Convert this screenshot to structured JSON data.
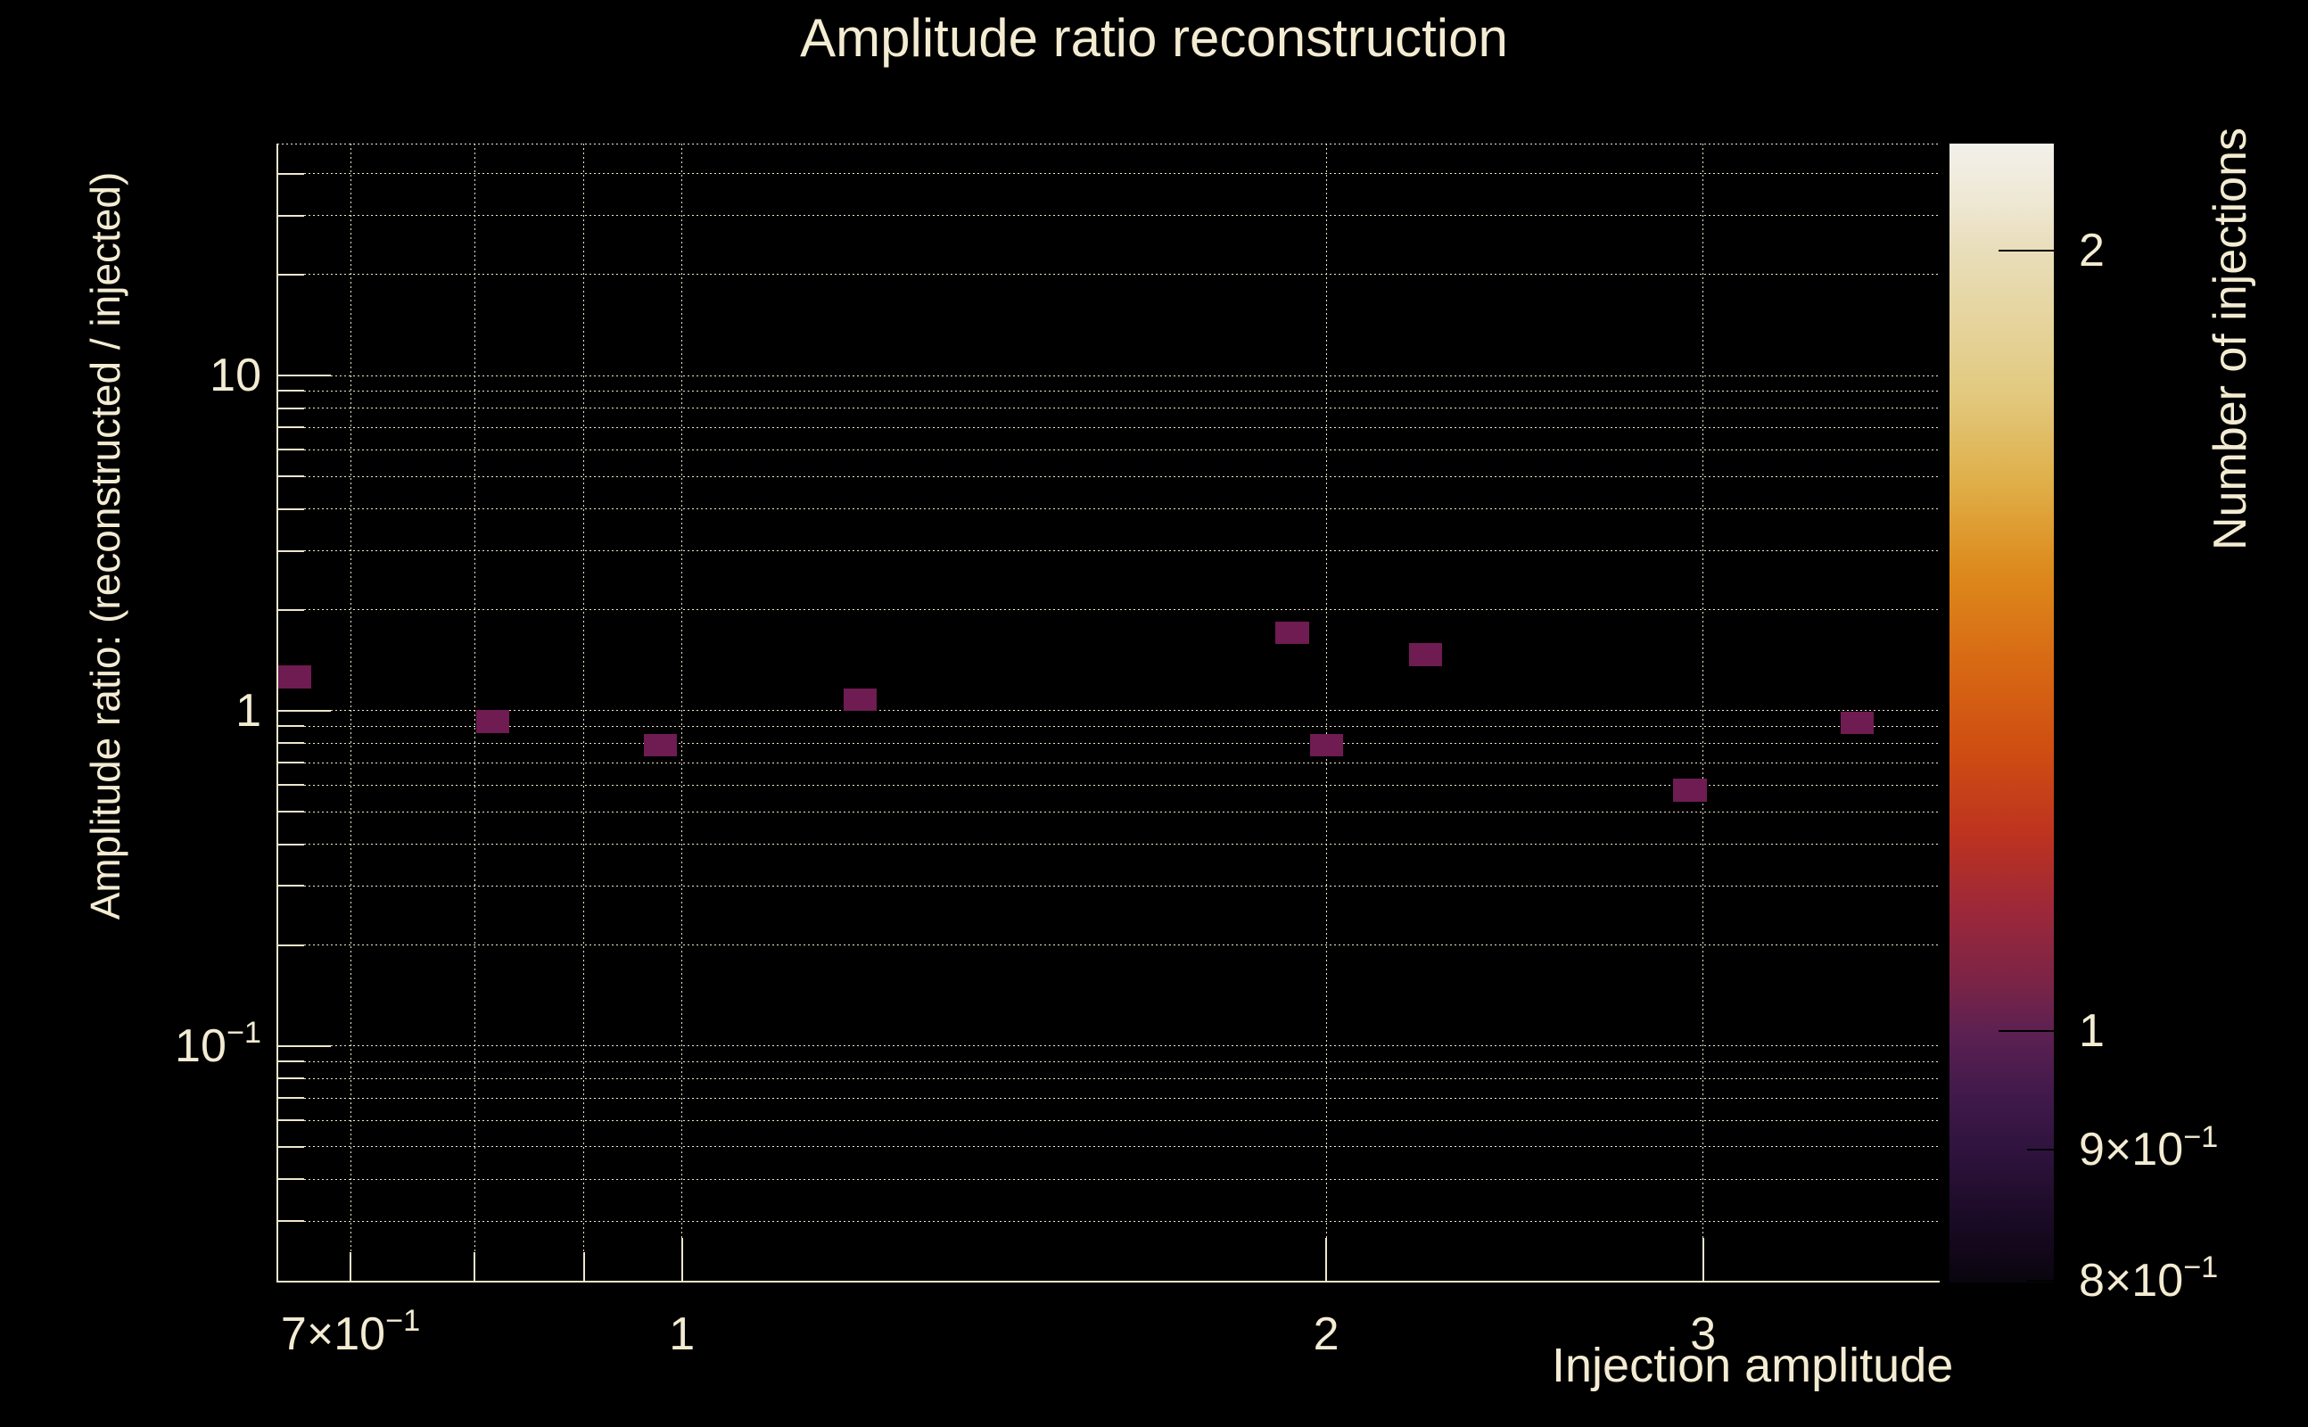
{
  "title": "Amplitude ratio reconstruction",
  "colors": {
    "background": "#000000",
    "text": "#f3ecd2",
    "grid": "#efe7cc",
    "axis": "#efe7cc",
    "bin_fill": "#6e1c51",
    "colorbar_tick": "#000000"
  },
  "chart_data": {
    "type": "heatmap",
    "title": "Amplitude ratio reconstruction",
    "xlabel": "Injection amplitude",
    "ylabel": "Amplitude ratio: (reconstructed / injected)",
    "zlabel": "Number of injections",
    "xscale": "log",
    "yscale": "log",
    "zscale": "log",
    "xlim": [
      0.647,
      3.866
    ],
    "ylim": [
      0.0197,
      49.2
    ],
    "zlim": [
      0.8,
      2.2
    ],
    "grid": true,
    "legend_position": "right-colorbar",
    "x_bin_ratio": 1.0364,
    "y_bin_ratio": 1.1693,
    "x_gridlines": [
      0.7,
      0.8,
      0.9,
      1,
      2,
      3
    ],
    "y_gridlines": [
      40,
      30,
      20,
      10,
      9,
      8,
      7,
      6,
      5,
      4,
      3,
      2,
      1,
      0.9,
      0.8,
      0.7,
      0.6,
      0.5,
      0.4,
      0.3,
      0.2,
      0.1,
      0.09,
      0.08,
      0.07,
      0.06,
      0.05,
      0.04,
      0.03
    ],
    "x_ticks": [
      {
        "v": 0.7,
        "base": "7×10",
        "sup": "−1"
      },
      {
        "v": 1,
        "base": "1",
        "sup": ""
      },
      {
        "v": 2,
        "base": "2",
        "sup": ""
      },
      {
        "v": 3,
        "base": "3",
        "sup": ""
      }
    ],
    "y_ticks": [
      {
        "v": 10,
        "base": "10",
        "sup": ""
      },
      {
        "v": 1,
        "base": "1",
        "sup": ""
      },
      {
        "v": 0.1,
        "base": "10",
        "sup": "−1"
      }
    ],
    "z_ticks": [
      {
        "v": 2,
        "base": "2",
        "sup": ""
      },
      {
        "v": 1,
        "base": "1",
        "sup": ""
      },
      {
        "v": 0.9,
        "base": "9×10",
        "sup": "−1"
      },
      {
        "v": 0.8,
        "base": "8×10",
        "sup": "−1"
      }
    ],
    "points": [
      {
        "x": 0.659,
        "y": 1.26,
        "count": 1
      },
      {
        "x": 0.816,
        "y": 0.93,
        "count": 1
      },
      {
        "x": 0.977,
        "y": 0.79,
        "count": 1
      },
      {
        "x": 1.211,
        "y": 1.08,
        "count": 1
      },
      {
        "x": 1.928,
        "y": 1.71,
        "count": 1
      },
      {
        "x": 2.225,
        "y": 1.47,
        "count": 1
      },
      {
        "x": 2.001,
        "y": 0.79,
        "count": 1
      },
      {
        "x": 2.958,
        "y": 0.58,
        "count": 1
      },
      {
        "x": 3.541,
        "y": 0.92,
        "count": 1
      }
    ],
    "colorbar_gradient": [
      {
        "pos": 0.0,
        "color": "#f3f0ea"
      },
      {
        "pos": 0.05,
        "color": "#eee8d4"
      },
      {
        "pos": 0.093,
        "color": "#e9debb"
      },
      {
        "pos": 0.15,
        "color": "#e6d5a0"
      },
      {
        "pos": 0.22,
        "color": "#e2c97f"
      },
      {
        "pos": 0.3,
        "color": "#dfae47"
      },
      {
        "pos": 0.375,
        "color": "#dd8a1c"
      },
      {
        "pos": 0.453,
        "color": "#d86a14"
      },
      {
        "pos": 0.532,
        "color": "#cf4e12"
      },
      {
        "pos": 0.61,
        "color": "#bc3220"
      },
      {
        "pos": 0.673,
        "color": "#9c2839"
      },
      {
        "pos": 0.735,
        "color": "#7c2446"
      },
      {
        "pos": 0.778,
        "color": "#5e2152"
      },
      {
        "pos": 0.837,
        "color": "#40194b"
      },
      {
        "pos": 0.884,
        "color": "#2f133e"
      },
      {
        "pos": 0.947,
        "color": "#190a24"
      },
      {
        "pos": 1.0,
        "color": "#0a050e"
      }
    ]
  }
}
